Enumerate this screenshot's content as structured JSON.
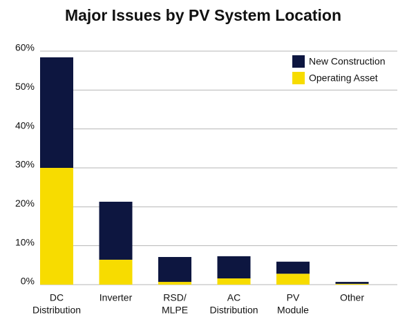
{
  "chart_data": {
    "type": "stacked_bar",
    "title": "Major Issues by PV System Location",
    "categories": [
      [
        "DC",
        "Distribution"
      ],
      [
        "Inverter"
      ],
      [
        "RSD/",
        "MLPE"
      ],
      [
        "AC",
        "Distribution"
      ],
      [
        "PV",
        "Module"
      ],
      [
        "Other"
      ]
    ],
    "series": [
      {
        "name": "Operating Asset",
        "color": "#f7dc00",
        "values": [
          30.0,
          6.4,
          0.7,
          1.6,
          2.8,
          0.2
        ]
      },
      {
        "name": "New Construction",
        "color": "#0d1640",
        "values": [
          28.4,
          14.9,
          6.4,
          5.7,
          3.1,
          0.5
        ]
      }
    ],
    "ylim": [
      0,
      60
    ],
    "yticks": [
      {
        "value": 0,
        "label": "0%"
      },
      {
        "value": 10,
        "label": "10%"
      },
      {
        "value": 20,
        "label": "20%"
      },
      {
        "value": 30,
        "label": "30%"
      },
      {
        "value": 40,
        "label": "40%"
      },
      {
        "value": 50,
        "label": "50%"
      },
      {
        "value": 60,
        "label": "60%"
      }
    ],
    "grid": true,
    "legend": "top-right"
  }
}
